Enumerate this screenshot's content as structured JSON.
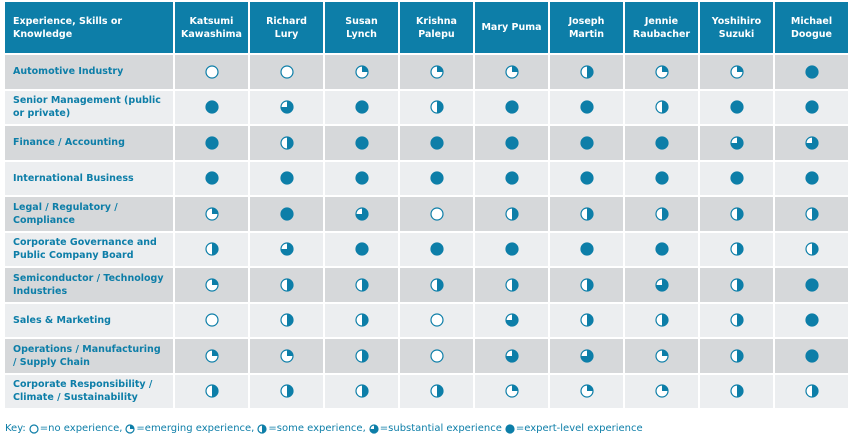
{
  "table": {
    "header": [
      "Experience, Skills or Knowledge",
      "Katsumi Kawashima",
      "Richard Lury",
      "Susan Lynch",
      "Krishna Palepu",
      "Mary Puma",
      "Joseph Martin",
      "Jennie Raubacher",
      "Yoshihiro Suzuki",
      "Michael Doogue"
    ],
    "rows": [
      {
        "label": "Automotive Industry",
        "levels": [
          0,
          0,
          1,
          1,
          1,
          2,
          1,
          1,
          4
        ]
      },
      {
        "label": "Senior Management (public or private)",
        "levels": [
          4,
          3,
          4,
          2,
          4,
          4,
          2,
          4,
          4
        ]
      },
      {
        "label": "Finance / Accounting",
        "levels": [
          4,
          2,
          4,
          4,
          4,
          4,
          4,
          3,
          3
        ]
      },
      {
        "label": "International Business",
        "levels": [
          4,
          4,
          4,
          4,
          4,
          4,
          4,
          4,
          4
        ]
      },
      {
        "label": "Legal / Regulatory / Compliance",
        "levels": [
          1,
          4,
          3,
          0,
          2,
          2,
          2,
          2,
          2
        ]
      },
      {
        "label": "Corporate Governance and Public Company Board",
        "levels": [
          2,
          3,
          4,
          4,
          4,
          4,
          4,
          2,
          2
        ]
      },
      {
        "label": "Semiconductor / Technology Industries",
        "levels": [
          1,
          2,
          2,
          2,
          2,
          2,
          3,
          2,
          4
        ]
      },
      {
        "label": "Sales & Marketing",
        "levels": [
          0,
          2,
          2,
          0,
          3,
          2,
          2,
          2,
          4
        ]
      },
      {
        "label": "Operations / Manufacturing / Supply Chain",
        "levels": [
          1,
          1,
          2,
          0,
          3,
          3,
          1,
          2,
          4
        ]
      },
      {
        "label": "Corporate Responsibility / Climate / Sustainability",
        "levels": [
          2,
          2,
          2,
          2,
          1,
          1,
          1,
          2,
          2
        ]
      }
    ]
  },
  "key": {
    "title": "Key:",
    "items": [
      {
        "level": 0,
        "label": "=no experience,"
      },
      {
        "level": 1,
        "label": "=emerging experience,"
      },
      {
        "level": 2,
        "label": "=some experience,"
      },
      {
        "level": 3,
        "label": "=substantial experience"
      },
      {
        "level": 4,
        "label": "=expert-level experience"
      }
    ]
  }
}
